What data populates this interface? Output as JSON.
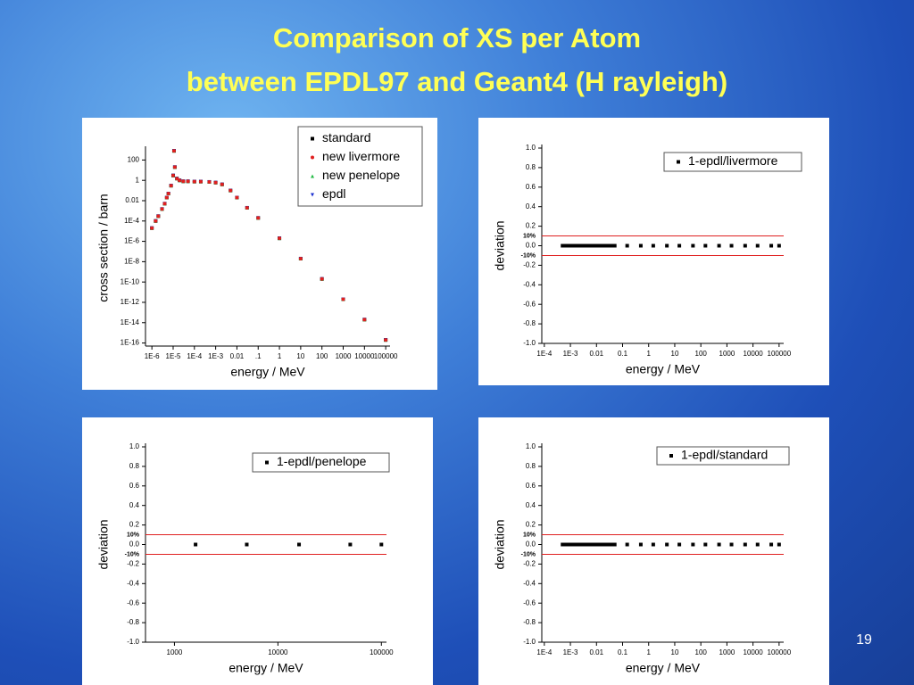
{
  "title": [
    "Comparison of XS per Atom",
    "between EPDL97 and Geant4 (H rayleigh)"
  ],
  "page_number": 19,
  "chart_data": [
    {
      "type": "scatter",
      "xlabel": "energy / MeV",
      "ylabel": "cross section / barn",
      "xlog": true,
      "ylog": true,
      "xlim": [
        5e-07,
        160000
      ],
      "ylim": [
        5e-17,
        1000
      ],
      "xticks": [
        {
          "value": 1e-06,
          "label": "1E-6"
        },
        {
          "value": 1e-05,
          "label": "1E-5"
        },
        {
          "value": 0.0001,
          "label": "1E-4"
        },
        {
          "value": 0.001,
          "label": "1E-3"
        },
        0.01,
        {
          "value": 0.1,
          "label": ".1"
        },
        1,
        10,
        100,
        1000,
        10000,
        100000
      ],
      "yticks": [
        100,
        1,
        0.01,
        {
          "value": 0.0001,
          "label": "1E-4"
        },
        {
          "value": 1e-06,
          "label": "1E-6"
        },
        {
          "value": 1e-08,
          "label": "1E-8"
        },
        {
          "value": 1e-10,
          "label": "1E-10"
        },
        {
          "value": 1e-12,
          "label": "1E-12"
        },
        {
          "value": 1e-14,
          "label": "1E-14"
        },
        {
          "value": 1e-16,
          "label": "1E-16"
        }
      ],
      "legend": "upper right",
      "x": [
        1e-06,
        1.5e-06,
        2e-06,
        3e-06,
        4e-06,
        5e-06,
        6e-06,
        8e-06,
        1e-05,
        1.1e-05,
        1.2e-05,
        1.5e-05,
        2e-05,
        3e-05,
        5e-05,
        0.0001,
        0.0002,
        0.0005,
        0.001,
        0.002,
        0.005,
        0.01,
        0.03,
        0.1,
        1,
        10,
        100,
        1000,
        10000,
        100000
      ],
      "series": [
        {
          "name": "standard",
          "color": "#000000",
          "marker": "square",
          "values": [
            2e-05,
            0.0001,
            0.0003,
            0.0015,
            0.005,
            0.02,
            0.05,
            0.3,
            3,
            800,
            20,
            1.5,
            1,
            0.8,
            0.8,
            0.75,
            0.75,
            0.7,
            0.6,
            0.4,
            0.1,
            0.02,
            0.002,
            0.0002,
            2e-06,
            2e-08,
            2e-10,
            2e-12,
            2e-14,
            2e-16
          ]
        },
        {
          "name": "new livermore",
          "color": "#e02020",
          "marker": "circle",
          "values": [
            2e-05,
            0.0001,
            0.0003,
            0.0015,
            0.005,
            0.02,
            0.05,
            0.3,
            3,
            800,
            20,
            1.5,
            1,
            0.8,
            0.8,
            0.75,
            0.75,
            0.7,
            0.6,
            0.4,
            0.1,
            0.02,
            0.002,
            0.0002,
            2e-06,
            2e-08,
            2e-10,
            2e-12,
            2e-14,
            2e-16
          ]
        },
        {
          "name": "new penelope",
          "color": "#22bb44",
          "marker": "triangle-up",
          "values": [
            2e-05,
            0.0001,
            0.0003,
            0.0015,
            0.005,
            0.02,
            0.05,
            0.3,
            3,
            800,
            20,
            1.5,
            1,
            0.8,
            0.8,
            0.75,
            0.75,
            0.7,
            0.6,
            0.4,
            0.1,
            0.02,
            0.002,
            0.0002,
            2e-06,
            2e-08,
            2e-10,
            2e-12,
            2e-14,
            2e-16
          ]
        },
        {
          "name": "epdl",
          "color": "#1a2fd0",
          "marker": "triangle-down",
          "values": [
            2e-05,
            0.0001,
            0.0003,
            0.0015,
            0.005,
            0.02,
            0.05,
            0.3,
            3,
            800,
            20,
            1.5,
            1,
            0.8,
            0.8,
            0.75,
            0.75,
            0.7,
            0.6,
            0.4,
            0.1,
            0.02,
            0.002,
            0.0002,
            2e-06,
            2e-08,
            2e-10,
            2e-12,
            2e-14,
            2e-16
          ]
        }
      ]
    },
    {
      "type": "scatter",
      "xlabel": "energy / MeV",
      "ylabel": "deviation",
      "xlog": true,
      "ylog": false,
      "xlim": [
        8e-05,
        150000
      ],
      "ylim": [
        -1,
        1
      ],
      "xticks": [
        {
          "value": 0.0001,
          "label": "1E-4"
        },
        {
          "value": 0.001,
          "label": "1E-3"
        },
        0.01,
        0.1,
        1,
        10,
        100,
        1000,
        10000,
        100000
      ],
      "yticks": [
        {
          "value": -1,
          "label": "-1.0"
        },
        -0.8,
        -0.6,
        -0.4,
        -0.2,
        {
          "value": 0,
          "label": "0.0"
        },
        0.2,
        0.4,
        0.6,
        0.8,
        {
          "value": 1,
          "label": "1.0"
        }
      ],
      "bands": [
        {
          "value": 0.1,
          "label": "10%"
        },
        {
          "value": -0.1,
          "label": "-10%"
        }
      ],
      "band_color": "#e02020",
      "legend": "upper right",
      "x": [
        0.0005,
        0.0006,
        0.0008,
        0.001,
        0.0013,
        0.0016,
        0.002,
        0.0025,
        0.003,
        0.004,
        0.005,
        0.006,
        0.008,
        0.01,
        0.013,
        0.016,
        0.02,
        0.025,
        0.03,
        0.04,
        0.05,
        0.15,
        0.5,
        1.5,
        5,
        15,
        50,
        150,
        500,
        1500,
        5000,
        15000,
        50000,
        100000
      ],
      "series": [
        {
          "name": "1-epdl/livermore",
          "color": "#000000",
          "marker": "square",
          "values": [
            0,
            0,
            0,
            0,
            0,
            0,
            0,
            0,
            0,
            0,
            0,
            0,
            0,
            0,
            0,
            0,
            0,
            0,
            0,
            0,
            0,
            0,
            0,
            0,
            0,
            0,
            0,
            0,
            0,
            0,
            0,
            0,
            0,
            0
          ]
        }
      ]
    },
    {
      "type": "scatter",
      "xlabel": "energy / MeV",
      "ylabel": "deviation",
      "xlog": true,
      "ylog": false,
      "xlim": [
        525,
        112000
      ],
      "ylim": [
        -1,
        1
      ],
      "xticks": [
        1000,
        10000,
        100000
      ],
      "yticks": [
        {
          "value": -1,
          "label": "-1.0"
        },
        -0.8,
        -0.6,
        -0.4,
        -0.2,
        {
          "value": 0,
          "label": "0.0"
        },
        0.2,
        0.4,
        0.6,
        0.8,
        {
          "value": 1,
          "label": "1.0"
        }
      ],
      "bands": [
        {
          "value": 0.1,
          "label": "10%"
        },
        {
          "value": -0.1,
          "label": "-10%"
        }
      ],
      "band_color": "#e02020",
      "legend": "upper right",
      "x": [
        1600,
        5000,
        16000,
        50000,
        100000
      ],
      "series": [
        {
          "name": "1-epdl/penelope",
          "color": "#000000",
          "marker": "square",
          "values": [
            0,
            0,
            0,
            0,
            0
          ]
        }
      ]
    },
    {
      "type": "scatter",
      "xlabel": "energy / MeV",
      "ylabel": "deviation",
      "xlog": true,
      "ylog": false,
      "xlim": [
        8e-05,
        150000
      ],
      "ylim": [
        -1,
        1
      ],
      "xticks": [
        {
          "value": 0.0001,
          "label": "1E-4"
        },
        {
          "value": 0.001,
          "label": "1E-3"
        },
        0.01,
        0.1,
        1,
        10,
        100,
        1000,
        10000,
        100000
      ],
      "yticks": [
        {
          "value": -1,
          "label": "-1.0"
        },
        -0.8,
        -0.6,
        -0.4,
        -0.2,
        {
          "value": 0,
          "label": "0.0"
        },
        0.2,
        0.4,
        0.6,
        0.8,
        {
          "value": 1,
          "label": "1.0"
        }
      ],
      "bands": [
        {
          "value": 0.1,
          "label": "10%"
        },
        {
          "value": -0.1,
          "label": "-10%"
        }
      ],
      "band_color": "#e02020",
      "legend": "upper right",
      "x": [
        0.0005,
        0.0006,
        0.0008,
        0.001,
        0.0013,
        0.0016,
        0.002,
        0.0025,
        0.003,
        0.004,
        0.005,
        0.006,
        0.008,
        0.01,
        0.013,
        0.016,
        0.02,
        0.025,
        0.03,
        0.04,
        0.05,
        0.15,
        0.5,
        1.5,
        5,
        15,
        50,
        150,
        500,
        1500,
        5000,
        15000,
        50000,
        100000
      ],
      "series": [
        {
          "name": "1-epdl/standard",
          "color": "#000000",
          "marker": "square",
          "values": [
            0,
            0,
            0,
            0,
            0,
            0,
            0,
            0,
            0,
            0,
            0,
            0,
            0,
            0,
            0,
            0,
            0,
            0,
            0,
            0,
            0,
            0,
            0,
            0,
            0,
            0,
            0,
            0,
            0,
            0,
            0,
            0,
            0,
            0
          ]
        }
      ]
    }
  ]
}
